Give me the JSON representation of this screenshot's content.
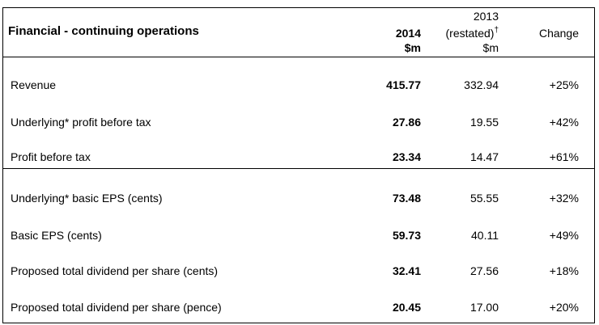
{
  "table": {
    "title": "Financial - continuing operations",
    "columns": {
      "current": {
        "year": "2014",
        "unit": "$m"
      },
      "prior": {
        "year": "2013",
        "note": "(restated)",
        "marker": "†",
        "unit": "$m"
      },
      "change": "Change"
    },
    "rows": [
      {
        "label": "Revenue",
        "current": "415.77",
        "prior": "332.94",
        "change": "+25%"
      },
      {
        "label": "Underlying* profit before tax",
        "current": "27.86",
        "prior": "19.55",
        "change": "+42%"
      },
      {
        "label": "Profit before tax",
        "current": "23.34",
        "prior": "14.47",
        "change": "+61%"
      },
      {
        "label": "Underlying* basic EPS (cents)",
        "current": "73.48",
        "prior": "55.55",
        "change": "+32%"
      },
      {
        "label": "Basic EPS (cents)",
        "current": "59.73",
        "prior": "40.11",
        "change": "+49%"
      },
      {
        "label": "Proposed total dividend per share (cents)",
        "current": "32.41",
        "prior": "27.56",
        "change": "+18%"
      },
      {
        "label": "Proposed total dividend per share (pence)",
        "current": "20.45",
        "prior": "17.00",
        "change": "+20%"
      }
    ]
  }
}
